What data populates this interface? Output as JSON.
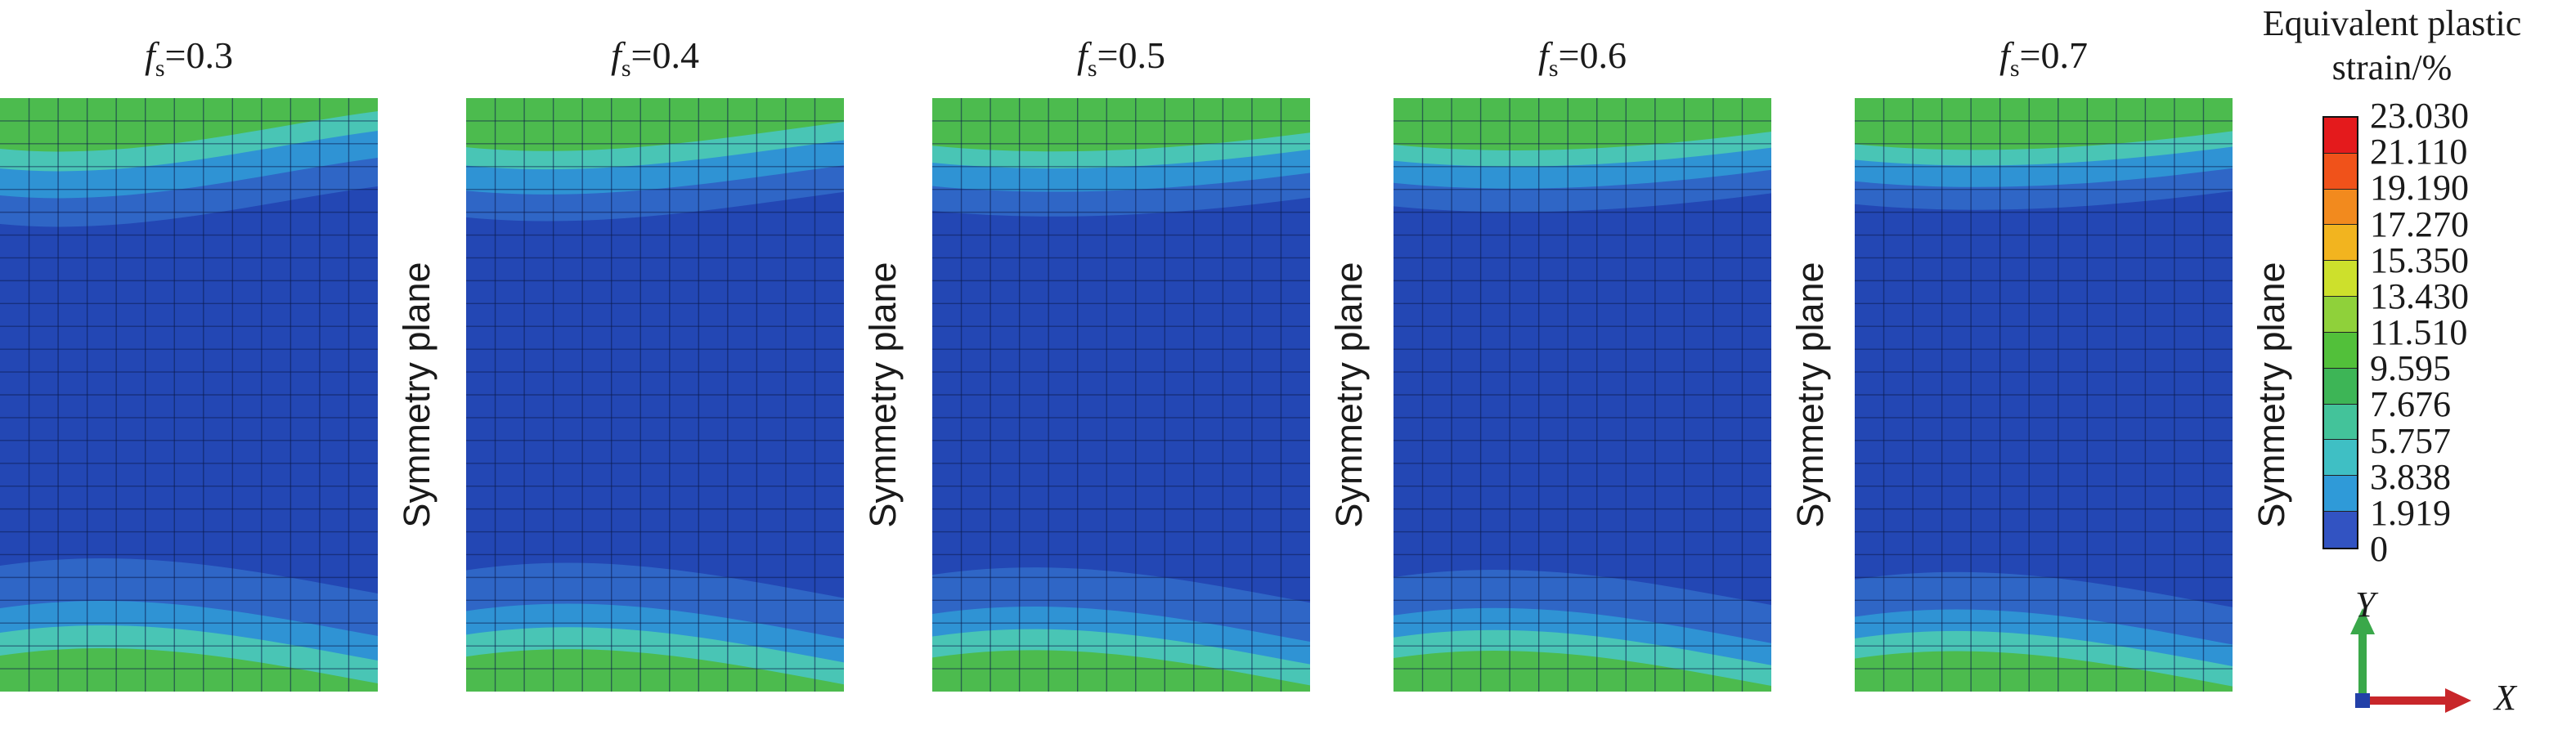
{
  "panels": [
    {
      "prefix": "f",
      "sub": "s",
      "value": "=0.3",
      "side_label": "Symmetry plane",
      "top_band": 1.0,
      "bottom_band": 1.0
    },
    {
      "prefix": "f",
      "sub": "s",
      "value": "=0.4",
      "side_label": "Symmetry plane",
      "top_band": 0.85,
      "bottom_band": 0.9
    },
    {
      "prefix": "f",
      "sub": "s",
      "value": "=0.5",
      "side_label": "Symmetry plane",
      "top_band": 0.7,
      "bottom_band": 0.8
    },
    {
      "prefix": "f",
      "sub": "s",
      "value": "=0.6",
      "side_label": "Symmetry plane",
      "top_band": 0.6,
      "bottom_band": 0.75
    },
    {
      "prefix": "f",
      "sub": "s",
      "value": "=0.7",
      "side_label": "Symmetry plane",
      "top_band": 0.55,
      "bottom_band": 0.7
    }
  ],
  "legend": {
    "title_line1": "Equivalent plastic",
    "title_line2": "strain/%",
    "ticks": [
      "23.030",
      "21.110",
      "19.190",
      "17.270",
      "15.350",
      "13.430",
      "11.510",
      "9.595",
      "7.676",
      "5.757",
      "3.838",
      "1.919",
      "0"
    ],
    "colors": [
      "#e41a1c",
      "#f0521a",
      "#f28a1e",
      "#f2b41f",
      "#cde02c",
      "#8fd13a",
      "#52c03a",
      "#3db556",
      "#43c39a",
      "#3fbfc4",
      "#2f9ad8",
      "#3253c2"
    ]
  },
  "axes": {
    "x_label": "X",
    "y_label": "Y"
  },
  "mesh_colors": {
    "deep": "#2347b4",
    "blue": "#2f66c6",
    "light": "#2f93d4",
    "cyan": "#49c5b5",
    "green": "#4cbb4e",
    "grid": "#0b1a4a"
  }
}
